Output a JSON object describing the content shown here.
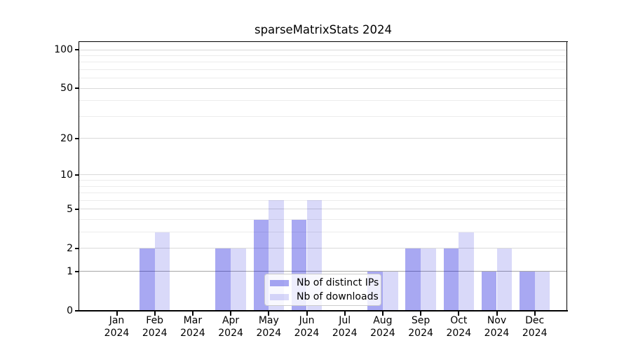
{
  "chart_data": {
    "type": "bar",
    "title": "sparseMatrixStats 2024",
    "x_months": [
      "Jan",
      "Feb",
      "Mar",
      "Apr",
      "May",
      "Jun",
      "Jul",
      "Aug",
      "Sep",
      "Oct",
      "Nov",
      "Dec"
    ],
    "x_year": "2024",
    "series": [
      {
        "name": "Nb of distinct IPs",
        "color": "rgba(0,0,216,0.34)",
        "values": [
          0,
          2,
          0,
          2,
          4,
          4,
          0,
          1,
          2,
          2,
          1,
          1
        ]
      },
      {
        "name": "Nb of downloads",
        "color": "rgba(0,0,216,0.15)",
        "values": [
          0,
          3,
          0,
          2,
          6,
          6,
          0,
          1,
          2,
          3,
          2,
          1
        ]
      }
    ],
    "y_scale": "log1p",
    "ylim": [
      0,
      115
    ],
    "y_major_ticks": [
      0,
      1,
      2,
      5,
      10,
      20,
      50,
      100
    ],
    "y_minor_gridlines": [
      3,
      4,
      6,
      7,
      8,
      9,
      30,
      40,
      60,
      70,
      80,
      90
    ],
    "emphasized_gridline": 1,
    "grid": true,
    "legend_position": "inside-bottom-center"
  },
  "colors": {
    "grid_major": "#d9d9d9",
    "grid_minor": "#ececec",
    "grid_emphasis": "#a6a6a6",
    "spine": "#000000",
    "text": "#000000",
    "legend_border": "#cccccc",
    "legend_bg": "rgba(255,255,255,0.8)"
  }
}
